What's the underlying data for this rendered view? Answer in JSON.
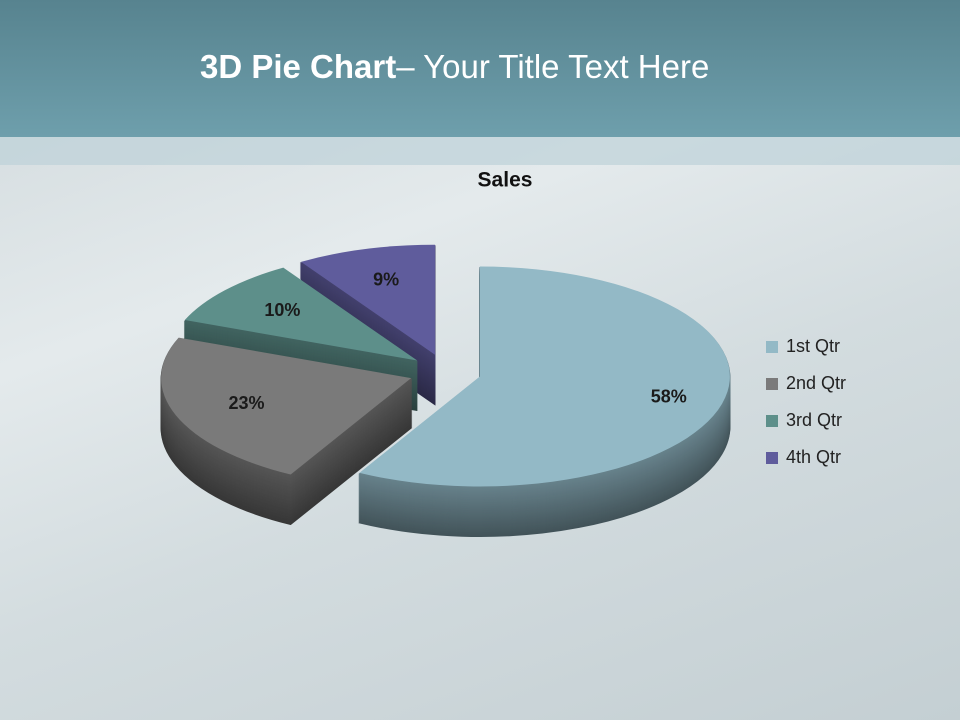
{
  "header": {
    "title_bold": "3D Pie Chart",
    "title_rest": "– Your Title Text Here"
  },
  "chart_data": {
    "type": "pie",
    "title": "Sales",
    "categories": [
      "1st Qtr",
      "2nd Qtr",
      "3rd Qtr",
      "4th Qtr"
    ],
    "values": [
      58,
      23,
      10,
      9
    ],
    "value_labels": [
      "58%",
      "23%",
      "10%",
      "9%"
    ],
    "colors": [
      "#93b9c6",
      "#7a7a7a",
      "#5d8f8a",
      "#5f5c9c"
    ],
    "legend": "right"
  }
}
